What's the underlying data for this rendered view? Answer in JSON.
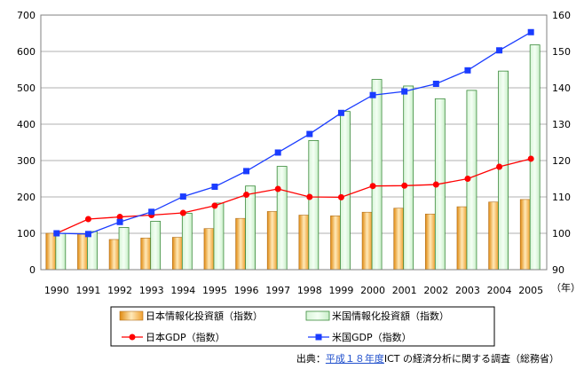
{
  "chart_data": {
    "type": "bar",
    "categories": [
      "1990",
      "1991",
      "1992",
      "1993",
      "1994",
      "1995",
      "1996",
      "1997",
      "1998",
      "1999",
      "2000",
      "2001",
      "2002",
      "2003",
      "2004",
      "2005"
    ],
    "x_unit": "（年）",
    "y_left": {
      "ylim": [
        0,
        700
      ],
      "ticks": [
        "0",
        "100",
        "200",
        "300",
        "400",
        "500",
        "600",
        "700"
      ]
    },
    "y_right": {
      "ylim": [
        90,
        160
      ],
      "ticks": [
        "90",
        "100",
        "110",
        "120",
        "130",
        "140",
        "150",
        "160"
      ]
    },
    "bar_series": [
      {
        "name": "日本情報化投資額（指数）",
        "color": "#f0a030",
        "values": [
          100,
          98,
          83,
          87,
          89,
          113,
          141,
          160,
          150,
          148,
          158,
          169,
          153,
          173,
          186,
          193
        ]
      },
      {
        "name": "米国情報化投資額（指数）",
        "color": "#7fd07f",
        "values": [
          100,
          105,
          116,
          133,
          155,
          183,
          230,
          284,
          355,
          435,
          523,
          505,
          470,
          493,
          546,
          618
        ]
      }
    ],
    "line_series": [
      {
        "name": "日本GDP（指数）",
        "color": "#ff0000",
        "marker": "circle",
        "values": [
          100,
          103.9,
          104.5,
          105,
          105.6,
          107.6,
          110.6,
          112.2,
          110,
          109.9,
          113,
          113.1,
          113.4,
          115,
          118.3,
          120.5
        ]
      },
      {
        "name": "米国GDP（指数）",
        "color": "#1a3cff",
        "marker": "square",
        "values": [
          100,
          99.8,
          103.1,
          105.9,
          110.1,
          112.8,
          117.1,
          122.2,
          127.3,
          133.1,
          138,
          139,
          141.1,
          144.8,
          150.3,
          155.3
        ]
      }
    ],
    "grid": true,
    "legend_position": "bottom"
  },
  "source": {
    "prefix": "出典：",
    "link_text": "平成１８年度",
    "suffix": "ICT の経済分析に関する調査（総務省）"
  }
}
